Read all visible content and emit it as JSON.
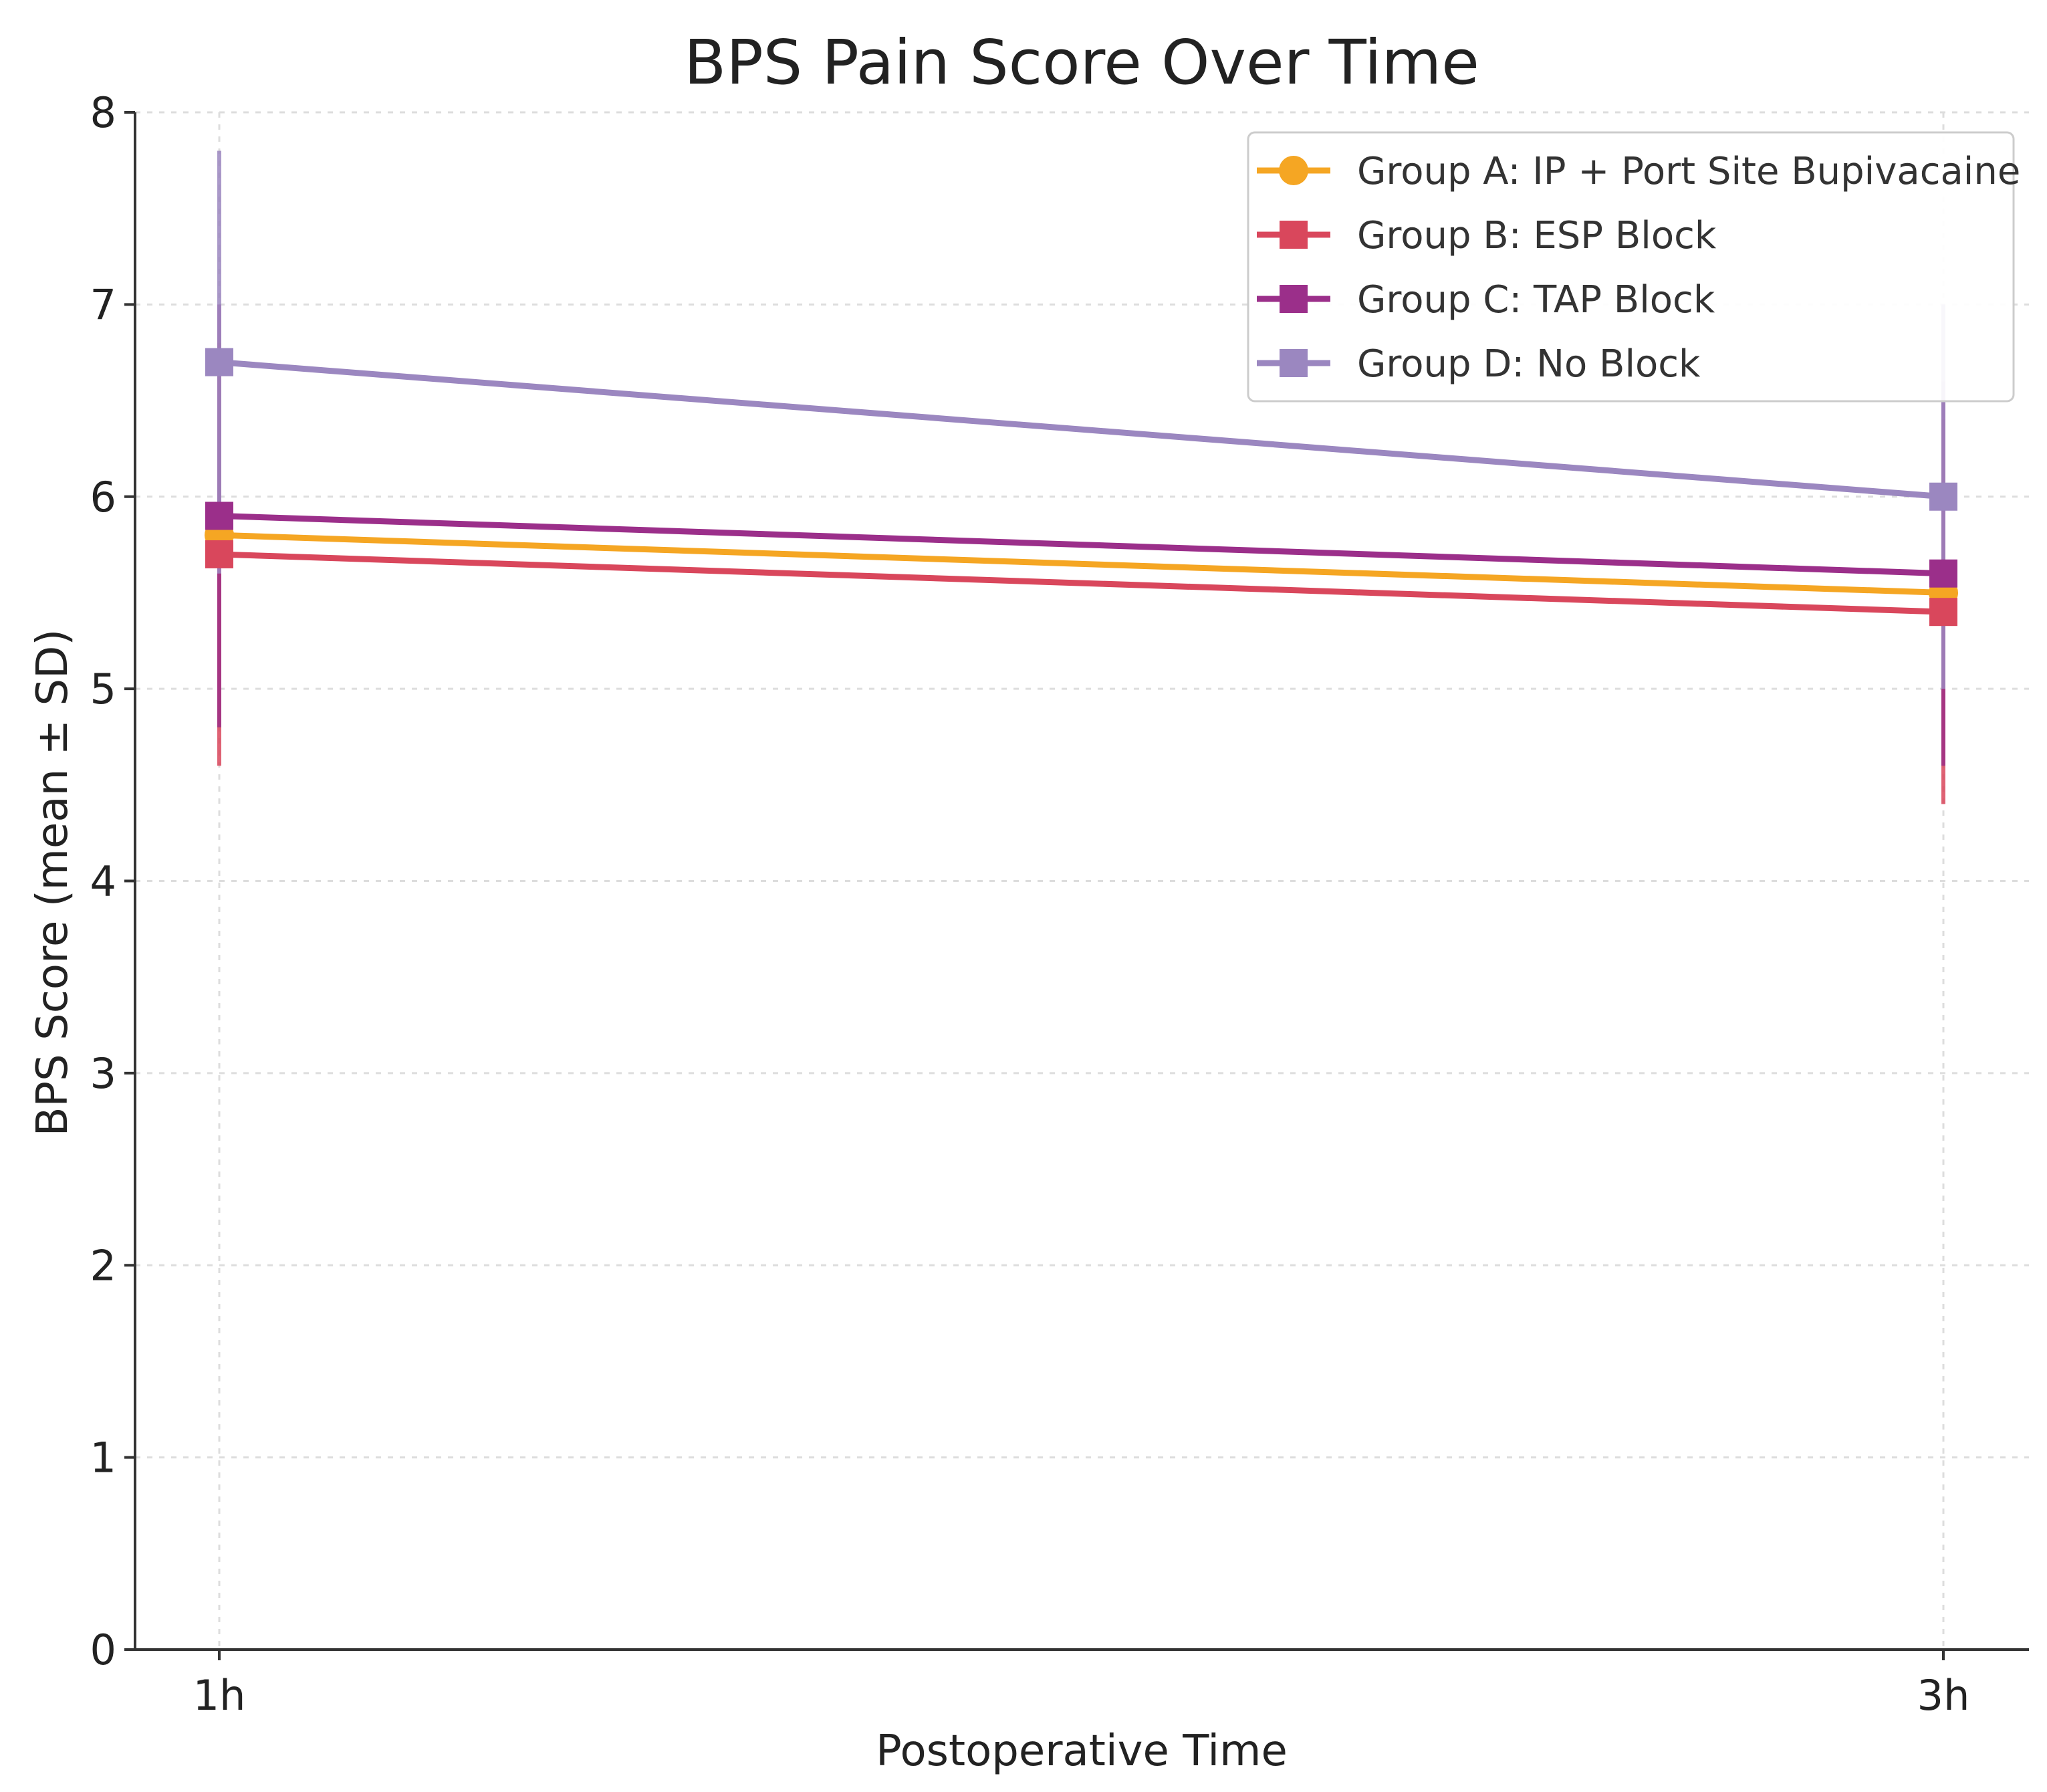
{
  "chart_data": {
    "type": "line",
    "title": "BPS Pain Score Over Time",
    "xlabel": "Postoperative Time",
    "ylabel": "BPS Score (mean ± SD)",
    "categories": [
      "1h",
      "3h"
    ],
    "ylim": [
      0,
      8
    ],
    "yticks": [
      "0",
      "1",
      "2",
      "3",
      "4",
      "5",
      "6",
      "7",
      "8"
    ],
    "grid": true,
    "legend_position": "top-right",
    "series": [
      {
        "name": "Group A: IP + Port Site Bupivacaine",
        "color": "#f5a623",
        "marker": "circle",
        "values": [
          5.8,
          5.5
        ],
        "sd": [
          1.0,
          0.9
        ]
      },
      {
        "name": "Group B: ESP Block",
        "color": "#d9475c",
        "marker": "square",
        "values": [
          5.7,
          5.4
        ],
        "sd": [
          1.1,
          1.0
        ]
      },
      {
        "name": "Group C: TAP Block",
        "color": "#9b2f8a",
        "marker": "square",
        "values": [
          5.9,
          5.6
        ],
        "sd": [
          1.1,
          1.0
        ]
      },
      {
        "name": "Group D: No Block",
        "color": "#9b87c0",
        "marker": "square",
        "values": [
          6.7,
          6.0
        ],
        "sd": [
          1.1,
          1.0
        ]
      }
    ]
  }
}
